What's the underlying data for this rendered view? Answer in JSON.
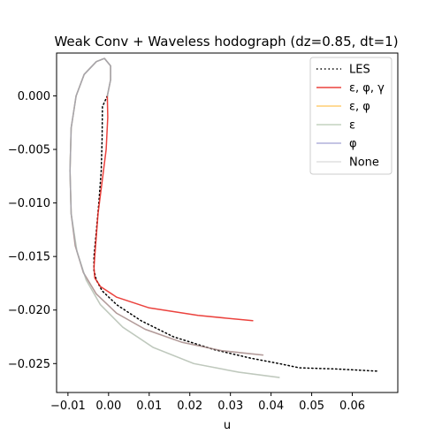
{
  "chart_data": {
    "type": "line",
    "title": "Weak Conv + Waveless hodograph (dz=0.85, dt=1)",
    "xlabel": "u",
    "ylabel": "",
    "xlim": [
      -0.0128,
      0.0712
    ],
    "ylim": [
      -0.0277,
      0.004
    ],
    "xticks": [
      -0.01,
      0.0,
      0.01,
      0.02,
      0.03,
      0.04,
      0.05,
      0.06
    ],
    "xtick_labels": [
      "−0.01",
      "0.00",
      "0.01",
      "0.02",
      "0.03",
      "0.04",
      "0.05",
      "0.06"
    ],
    "yticks": [
      0.0,
      -0.005,
      -0.01,
      -0.015,
      -0.02,
      -0.025
    ],
    "ytick_labels": [
      "0.000",
      "−0.005",
      "−0.010",
      "−0.015",
      "−0.020",
      "−0.025"
    ],
    "grid": false,
    "legend_position": "top-right",
    "series": [
      {
        "name": "LES",
        "color": "#000000",
        "dash": "dotted",
        "opacity": 1.0,
        "x": [
          -0.0003,
          -0.0015,
          -0.0016,
          -0.0018,
          -0.0024,
          -0.0031,
          -0.0036,
          -0.0036,
          -0.003,
          -0.0016,
          0.002,
          0.008,
          0.016,
          0.026,
          0.035,
          0.042,
          0.047,
          0.056,
          0.066
        ],
        "y": [
          0.0,
          -0.001,
          -0.004,
          -0.007,
          -0.01,
          -0.013,
          -0.015,
          -0.0163,
          -0.0172,
          -0.0182,
          -0.0195,
          -0.021,
          -0.0225,
          -0.0237,
          -0.0245,
          -0.025,
          -0.0254,
          -0.0255,
          -0.0257
        ]
      },
      {
        "name": "ε, φ, γ",
        "color": "#e8211b",
        "dash": "solid",
        "opacity": 0.85,
        "x": [
          -0.0003,
          -0.0002,
          -0.0006,
          -0.0016,
          -0.0026,
          -0.0032,
          -0.0036,
          -0.0034,
          -0.002,
          0.002,
          0.01,
          0.022,
          0.0355
        ],
        "y": [
          0.0,
          -0.002,
          -0.005,
          -0.008,
          -0.011,
          -0.014,
          -0.016,
          -0.017,
          -0.0178,
          -0.0188,
          -0.0198,
          -0.0205,
          -0.021
        ]
      },
      {
        "name": "ε, φ",
        "color": "#ffa500",
        "dash": "solid",
        "opacity": 0.55,
        "x": [
          -0.0003,
          0.0005,
          0.0005,
          -0.001,
          -0.003,
          -0.006,
          -0.008,
          -0.0092,
          -0.0095,
          -0.0092,
          -0.0082,
          -0.0062,
          -0.003,
          0.002,
          0.009,
          0.018,
          0.028,
          0.038
        ],
        "y": [
          0.0,
          0.0015,
          0.0028,
          0.0035,
          0.0032,
          0.002,
          0.0,
          -0.003,
          -0.007,
          -0.011,
          -0.014,
          -0.0165,
          -0.0185,
          -0.0203,
          -0.0218,
          -0.023,
          -0.0238,
          -0.0242
        ]
      },
      {
        "name": "ε",
        "color": "#88aa7f",
        "dash": "solid",
        "opacity": 0.5,
        "x": [
          -0.0003,
          0.0005,
          0.0005,
          -0.001,
          -0.003,
          -0.006,
          -0.008,
          -0.0092,
          -0.0095,
          -0.0092,
          -0.0078,
          -0.0055,
          -0.002,
          0.0035,
          0.011,
          0.021,
          0.032,
          0.042
        ],
        "y": [
          0.0,
          0.0015,
          0.0028,
          0.0035,
          0.0032,
          0.002,
          0.0,
          -0.003,
          -0.007,
          -0.011,
          -0.0145,
          -0.0172,
          -0.0195,
          -0.0216,
          -0.0235,
          -0.025,
          -0.0258,
          -0.0263
        ]
      },
      {
        "name": "φ",
        "color": "#6f6fbf",
        "dash": "solid",
        "opacity": 0.55,
        "x": [
          -0.0003,
          0.0005,
          0.0005,
          -0.001,
          -0.003,
          -0.006,
          -0.008,
          -0.0092,
          -0.0095,
          -0.0092,
          -0.0082,
          -0.0062,
          -0.003,
          0.002,
          0.009,
          0.018,
          0.028,
          0.038
        ],
        "y": [
          0.0,
          0.0015,
          0.0028,
          0.0035,
          0.0032,
          0.002,
          0.0,
          -0.003,
          -0.007,
          -0.011,
          -0.014,
          -0.0165,
          -0.0185,
          -0.0203,
          -0.0218,
          -0.023,
          -0.0238,
          -0.0242
        ]
      },
      {
        "name": "None",
        "color": "#bbbbbb",
        "dash": "solid",
        "opacity": 0.45,
        "x": [
          -0.0003,
          0.0005,
          0.0005,
          -0.001,
          -0.003,
          -0.006,
          -0.008,
          -0.0092,
          -0.0095,
          -0.0092,
          -0.0078,
          -0.0055,
          -0.002,
          0.0035,
          0.011,
          0.021,
          0.032,
          0.042
        ],
        "y": [
          0.0,
          0.0015,
          0.0028,
          0.0035,
          0.0032,
          0.002,
          0.0,
          -0.003,
          -0.007,
          -0.011,
          -0.0145,
          -0.0172,
          -0.0195,
          -0.0216,
          -0.0235,
          -0.025,
          -0.0258,
          -0.0263
        ]
      }
    ]
  }
}
